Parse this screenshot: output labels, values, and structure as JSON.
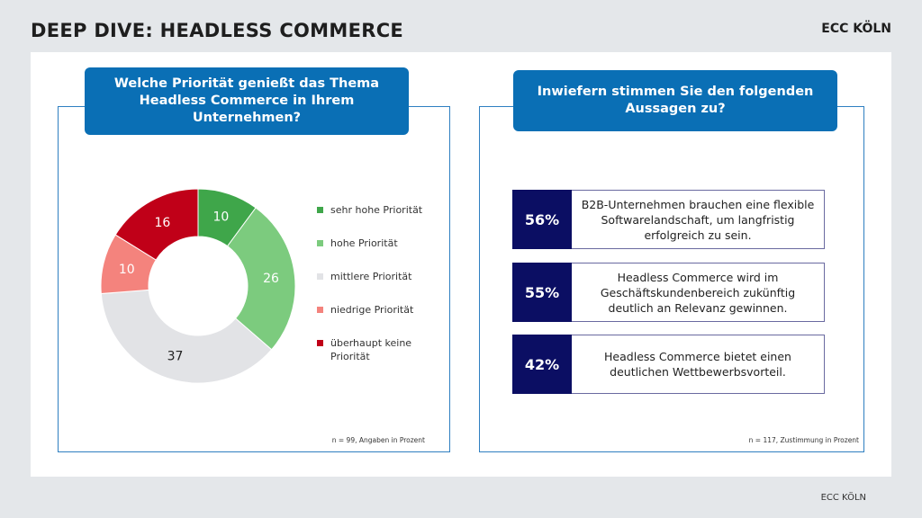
{
  "page": {
    "title": "DEEP DIVE: HEADLESS COMMERCE",
    "brand_top": "ECC KÖLN",
    "brand_bottom": "ECC KÖLN"
  },
  "left_panel": {
    "question": "Welche Priorität genießt das Thema Headless Commerce in Ihrem Unternehmen?",
    "footnote": "n = 99, Angaben in Prozent"
  },
  "right_panel": {
    "question": "Inwiefern stimmen Sie den folgenden Aussagen zu?",
    "footnote": "n = 117, Zustimmung in Prozent",
    "statements": [
      {
        "pct": "56%",
        "text": "B2B-Unternehmen brauchen eine flexible Softwarelandschaft, um langfristig erfolgreich zu sein."
      },
      {
        "pct": "55%",
        "text": "Headless Commerce wird im Geschäftskundenbereich zukünftig deutlich an Relevanz gewinnen."
      },
      {
        "pct": "42%",
        "text": "Headless Commerce bietet einen deutlichen Wettbewerbsvorteil."
      }
    ],
    "pct_color": "#0b0e63"
  },
  "chart_data": [
    {
      "type": "pie",
      "style": "donut",
      "title": "Welche Priorität genießt das Thema Headless Commerce in Ihrem Unternehmen?",
      "unit": "%",
      "categories": [
        "sehr hohe Priorität",
        "hohe Priorität",
        "mittlere Priorität",
        "niedrige Priorität",
        "überhaupt keine Priorität"
      ],
      "values": [
        10,
        26,
        37,
        10,
        16
      ],
      "colors": [
        "#3fa64a",
        "#7ccb7e",
        "#e2e3e6",
        "#f4837d",
        "#c00018"
      ],
      "label_colors": [
        "#ffffff",
        "#ffffff",
        "#222222",
        "#ffffff",
        "#ffffff"
      ],
      "legend_position": "right"
    },
    {
      "type": "table",
      "title": "Inwiefern stimmen Sie den folgenden Aussagen zu?",
      "unit": "% Zustimmung",
      "categories": [
        "B2B-Unternehmen brauchen eine flexible Softwarelandschaft, um langfristig erfolgreich zu sein.",
        "Headless Commerce wird im Geschäftskundenbereich zukünftig deutlich an Relevanz gewinnen.",
        "Headless Commerce bietet einen deutlichen Wettbewerbsvorteil."
      ],
      "values": [
        56,
        55,
        42
      ]
    }
  ]
}
